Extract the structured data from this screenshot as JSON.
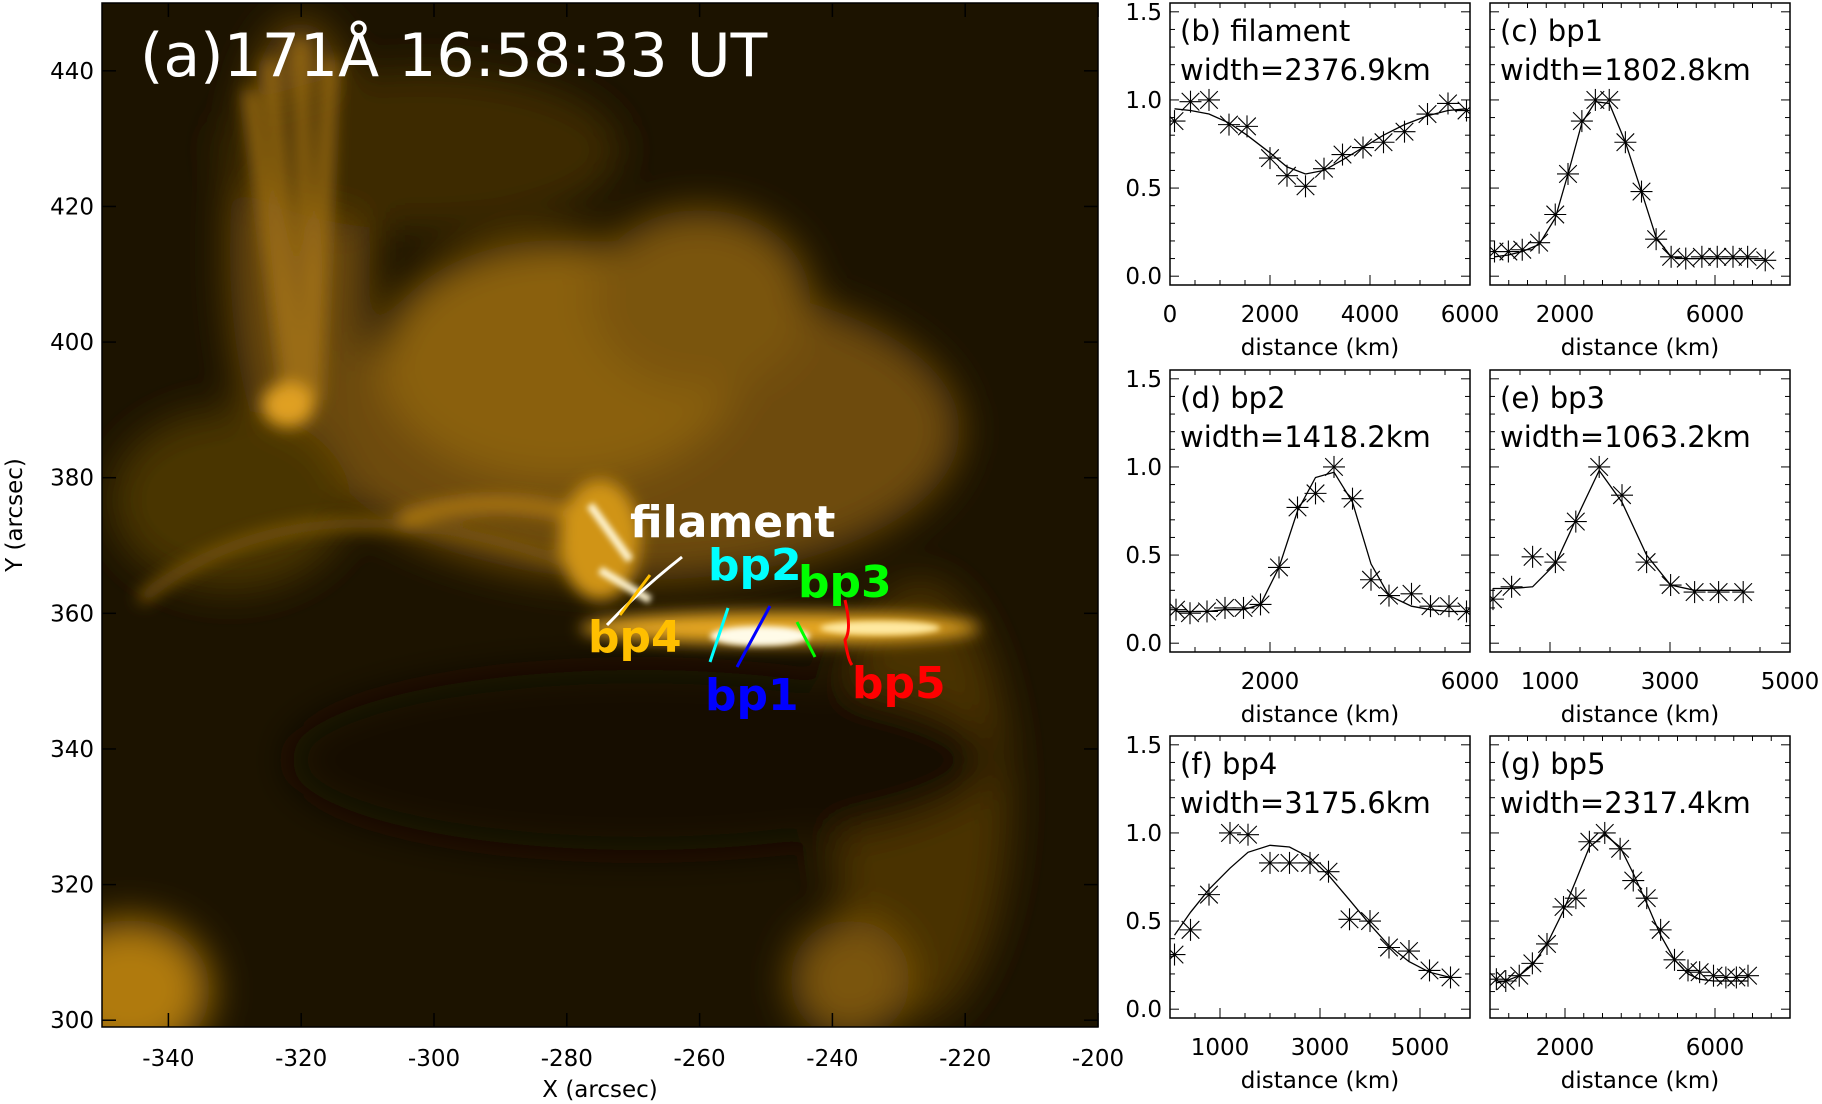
{
  "chart_data": [
    {
      "type": "heatmap",
      "title": "(a)171Å 16:58:33 UT",
      "xlabel": "X (arcsec)",
      "ylabel": "Y (arcsec)",
      "xlim": [
        -350,
        -200
      ],
      "ylim": [
        299,
        450
      ],
      "xticks": [
        -340,
        -320,
        -300,
        -280,
        -260,
        -240,
        -220,
        -200
      ],
      "xticklabels": [
        "-340",
        "-320",
        "-300",
        "-280",
        "-260",
        "-240",
        "-220",
        "-200"
      ],
      "yticks": [
        300,
        320,
        340,
        360,
        380,
        400,
        420,
        440
      ],
      "yticklabels": [
        "300",
        "320",
        "340",
        "360",
        "380",
        "400",
        "420",
        "440"
      ],
      "colormap": "SDO/AIA 171 (black-gold-white)",
      "annotations": [
        {
          "text": "filament",
          "color": "#ffffff"
        },
        {
          "text": "bp2",
          "color": "#00ffff"
        },
        {
          "text": "bp3",
          "color": "#00ff00"
        },
        {
          "text": "bp4",
          "color": "#ffbf00"
        },
        {
          "text": "bp1",
          "color": "#0000ff"
        },
        {
          "text": "bp5",
          "color": "#ff0000"
        }
      ]
    },
    {
      "type": "line",
      "title": "(b) filament",
      "annotation": "width=2376.9km",
      "xlabel": "distance (km)",
      "xlim": [
        0,
        6000
      ],
      "ylim": [
        -0.05,
        1.55
      ],
      "xticks": [
        0,
        2000,
        4000,
        6000
      ],
      "xticklabels": [
        "0",
        "2000",
        "4000",
        "6000"
      ],
      "yticks": [
        0,
        0.5,
        1.0,
        1.5
      ],
      "yticklabels": [
        "0.0",
        "0.5",
        "1.0",
        "1.5"
      ],
      "x": [
        90,
        410,
        780,
        1180,
        1540,
        2000,
        2340,
        2710,
        3080,
        3450,
        3860,
        4270,
        4690,
        5150,
        5560,
        5930
      ],
      "observed": [
        0.88,
        0.99,
        1.0,
        0.86,
        0.85,
        0.67,
        0.57,
        0.51,
        0.61,
        0.69,
        0.73,
        0.76,
        0.82,
        0.92,
        0.98,
        0.94
      ],
      "fit": [
        0.95,
        0.94,
        0.92,
        0.87,
        0.8,
        0.7,
        0.62,
        0.58,
        0.6,
        0.66,
        0.73,
        0.8,
        0.86,
        0.91,
        0.94,
        0.95
      ]
    },
    {
      "type": "line",
      "title": "(c) bp1",
      "annotation": "width=1802.8km",
      "xlabel": "distance (km)",
      "xlim": [
        0,
        8000
      ],
      "ylim": [
        -0.05,
        1.55
      ],
      "xticks": [
        2000,
        6000
      ],
      "xticklabels": [
        "2000",
        "6000"
      ],
      "yticks": [
        0,
        0.5,
        1.0,
        1.5
      ],
      "yticklabels": [],
      "x": [
        120,
        490,
        860,
        1310,
        1740,
        2080,
        2450,
        2810,
        3180,
        3610,
        4040,
        4430,
        4830,
        5220,
        5650,
        6060,
        6480,
        6870,
        7340
      ],
      "observed": [
        0.14,
        0.14,
        0.15,
        0.19,
        0.35,
        0.58,
        0.88,
        1.0,
        1.0,
        0.76,
        0.48,
        0.21,
        0.11,
        0.1,
        0.11,
        0.11,
        0.11,
        0.11,
        0.09
      ],
      "fit": [
        0.11,
        0.12,
        0.14,
        0.18,
        0.33,
        0.58,
        0.87,
        0.99,
        0.98,
        0.76,
        0.48,
        0.22,
        0.11,
        0.1,
        0.1,
        0.1,
        0.1,
        0.1,
        0.1
      ]
    },
    {
      "type": "line",
      "title": "(d) bp2",
      "annotation": "width=1418.2km",
      "xlabel": "distance (km)",
      "xlim": [
        0,
        6000
      ],
      "ylim": [
        -0.05,
        1.55
      ],
      "xticks": [
        2000,
        6000
      ],
      "xticklabels": [
        "2000",
        "6000"
      ],
      "yticks": [
        0,
        0.5,
        1.0,
        1.5
      ],
      "yticklabels": [
        "0.0",
        "0.5",
        "1.0",
        "1.5"
      ],
      "x": [
        120,
        400,
        740,
        1100,
        1470,
        1810,
        2180,
        2550,
        2910,
        3280,
        3650,
        4020,
        4380,
        4830,
        5210,
        5580,
        5930
      ],
      "observed": [
        0.19,
        0.17,
        0.18,
        0.2,
        0.2,
        0.22,
        0.43,
        0.77,
        0.85,
        1.0,
        0.82,
        0.36,
        0.27,
        0.28,
        0.21,
        0.21,
        0.18
      ],
      "fit": [
        0.18,
        0.18,
        0.18,
        0.19,
        0.19,
        0.22,
        0.43,
        0.75,
        0.94,
        0.97,
        0.8,
        0.45,
        0.27,
        0.21,
        0.19,
        0.18,
        0.18
      ]
    },
    {
      "type": "line",
      "title": "(e) bp3",
      "annotation": "width=1063.2km",
      "xlabel": "distance (km)",
      "xlim": [
        0,
        5000
      ],
      "ylim": [
        -0.05,
        1.55
      ],
      "xticks": [
        1000,
        3000,
        5000
      ],
      "xticklabels": [
        "1000",
        "3000",
        "5000"
      ],
      "yticks": [
        0,
        0.5,
        1.0,
        1.5
      ],
      "yticklabels": [],
      "x": [
        50,
        360,
        710,
        1090,
        1430,
        1820,
        2200,
        2610,
        3010,
        3410,
        3810,
        4220
      ],
      "observed": [
        0.25,
        0.32,
        0.49,
        0.46,
        0.69,
        1.0,
        0.84,
        0.46,
        0.33,
        0.29,
        0.29,
        0.29
      ],
      "fit": [
        0.31,
        0.31,
        0.32,
        0.45,
        0.7,
        0.98,
        0.8,
        0.5,
        0.33,
        0.3,
        0.3,
        0.3
      ]
    },
    {
      "type": "line",
      "title": "(f) bp4",
      "annotation": "width=3175.6km",
      "xlabel": "distance (km)",
      "xlim": [
        0,
        6000
      ],
      "ylim": [
        -0.05,
        1.55
      ],
      "xticks": [
        1000,
        3000,
        5000
      ],
      "xticklabels": [
        "1000",
        "3000",
        "5000"
      ],
      "yticks": [
        0,
        0.5,
        1.0,
        1.5
      ],
      "yticklabels": [
        "0.0",
        "0.5",
        "1.0",
        "1.5"
      ],
      "x": [
        90,
        410,
        780,
        1200,
        1560,
        2000,
        2390,
        2800,
        3170,
        3590,
        4000,
        4380,
        4780,
        5190,
        5610
      ],
      "observed": [
        0.31,
        0.45,
        0.65,
        1.0,
        0.99,
        0.83,
        0.83,
        0.83,
        0.78,
        0.51,
        0.5,
        0.35,
        0.33,
        0.22,
        0.18
      ],
      "fit": [
        0.42,
        0.55,
        0.68,
        0.8,
        0.89,
        0.93,
        0.92,
        0.86,
        0.76,
        0.62,
        0.48,
        0.36,
        0.27,
        0.21,
        0.18
      ]
    },
    {
      "type": "line",
      "title": "(g) bp5",
      "annotation": "width=2317.4km",
      "xlabel": "distance (km)",
      "xlim": [
        0,
        8000
      ],
      "ylim": [
        -0.05,
        1.55
      ],
      "xticks": [
        2000,
        6000
      ],
      "xticklabels": [
        "2000",
        "6000"
      ],
      "yticks": [
        0,
        0.5,
        1.0,
        1.5
      ],
      "yticklabels": [],
      "x": [
        170,
        420,
        780,
        1130,
        1520,
        1960,
        2290,
        2650,
        3060,
        3470,
        3820,
        4180,
        4550,
        4920,
        5280,
        5590,
        5960,
        6290,
        6570,
        6880
      ],
      "observed": [
        0.17,
        0.16,
        0.19,
        0.26,
        0.37,
        0.58,
        0.63,
        0.95,
        1.0,
        0.91,
        0.73,
        0.63,
        0.45,
        0.28,
        0.22,
        0.21,
        0.19,
        0.18,
        0.18,
        0.19
      ],
      "fit": [
        0.15,
        0.16,
        0.19,
        0.25,
        0.37,
        0.56,
        0.73,
        0.92,
        0.99,
        0.92,
        0.77,
        0.6,
        0.42,
        0.28,
        0.2,
        0.17,
        0.16,
        0.16,
        0.16,
        0.16
      ]
    }
  ]
}
